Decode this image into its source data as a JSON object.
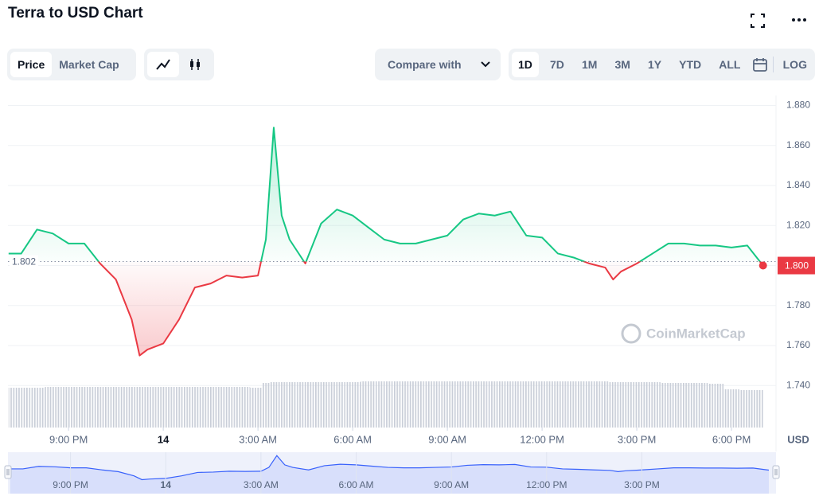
{
  "header": {
    "title": "Terra to USD Chart"
  },
  "toolbar": {
    "views": [
      "Price",
      "Market Cap"
    ],
    "compare": "Compare with",
    "ranges": [
      "1D",
      "7D",
      "1M",
      "3M",
      "1Y",
      "YTD",
      "ALL"
    ],
    "log": "LOG"
  },
  "chart_data": {
    "type": "line",
    "x": [
      19.1,
      19.5,
      20,
      20.5,
      21,
      21.5,
      22,
      22.5,
      23,
      23.25,
      23.5,
      24,
      24.5,
      25,
      25.5,
      26,
      26.5,
      27,
      27.25,
      27.5,
      27.75,
      28,
      28.5,
      29,
      29.5,
      30,
      30.5,
      31,
      31.5,
      32,
      32.5,
      33,
      33.5,
      34,
      34.5,
      35,
      35.5,
      36,
      36.5,
      37,
      37.5,
      38,
      38.25,
      38.5,
      39,
      39.5,
      40,
      40.5,
      41,
      41.5,
      42,
      42.5,
      43
    ],
    "values": [
      1.806,
      1.806,
      1.818,
      1.816,
      1.811,
      1.811,
      1.801,
      1.793,
      1.773,
      1.755,
      1.758,
      1.761,
      1.773,
      1.789,
      1.791,
      1.795,
      1.794,
      1.795,
      1.813,
      1.869,
      1.825,
      1.813,
      1.801,
      1.821,
      1.828,
      1.825,
      1.819,
      1.813,
      1.811,
      1.811,
      1.813,
      1.815,
      1.823,
      1.826,
      1.825,
      1.827,
      1.815,
      1.814,
      1.806,
      1.804,
      1.801,
      1.799,
      1.793,
      1.797,
      1.801,
      1.806,
      1.811,
      1.811,
      1.81,
      1.81,
      1.809,
      1.81,
      1.8
    ],
    "volume": [
      50,
      50,
      50,
      51,
      51,
      51,
      51,
      51,
      51,
      51,
      51,
      51,
      51,
      51,
      51,
      51,
      51,
      50,
      56,
      57,
      57,
      57,
      57,
      57,
      57,
      57,
      58,
      58,
      58,
      58,
      58,
      58,
      58,
      58,
      58,
      58,
      58,
      58,
      58,
      58,
      58,
      58,
      57,
      57,
      57,
      57,
      56,
      56,
      56,
      55,
      48,
      47,
      47
    ],
    "up_color": "#16c784",
    "down_color": "#ea3943",
    "volume_color": "#c9ced8",
    "navigator_color": "#3861fb",
    "xlim": [
      19.08,
      43.41
    ],
    "xticks": [
      {
        "value": 21,
        "label": "9:00 PM"
      },
      {
        "value": 24,
        "label": "14"
      },
      {
        "value": 27,
        "label": "3:00 AM"
      },
      {
        "value": 30,
        "label": "6:00 AM"
      },
      {
        "value": 33,
        "label": "9:00 AM"
      },
      {
        "value": 36,
        "label": "12:00 PM"
      },
      {
        "value": 39,
        "label": "3:00 PM"
      },
      {
        "value": 42,
        "label": "6:00 PM"
      }
    ],
    "ylim": [
      1.719,
      1.885
    ],
    "yticks": [
      {
        "value": 1.74,
        "label": "1.740"
      },
      {
        "value": 1.76,
        "label": "1.760"
      },
      {
        "value": 1.78,
        "label": "1.780"
      },
      {
        "value": 1.8,
        "label": "1.800"
      },
      {
        "value": 1.82,
        "label": "1.820"
      },
      {
        "value": 1.84,
        "label": "1.840"
      },
      {
        "value": 1.86,
        "label": "1.860"
      },
      {
        "value": 1.88,
        "label": "1.880"
      }
    ],
    "grid": true,
    "reference": {
      "value": 1.802,
      "label": "1.802"
    },
    "last_price": {
      "value": 1.8,
      "label": "1.800"
    },
    "y_unit": "USD",
    "watermark": "CoinMarketCap"
  }
}
